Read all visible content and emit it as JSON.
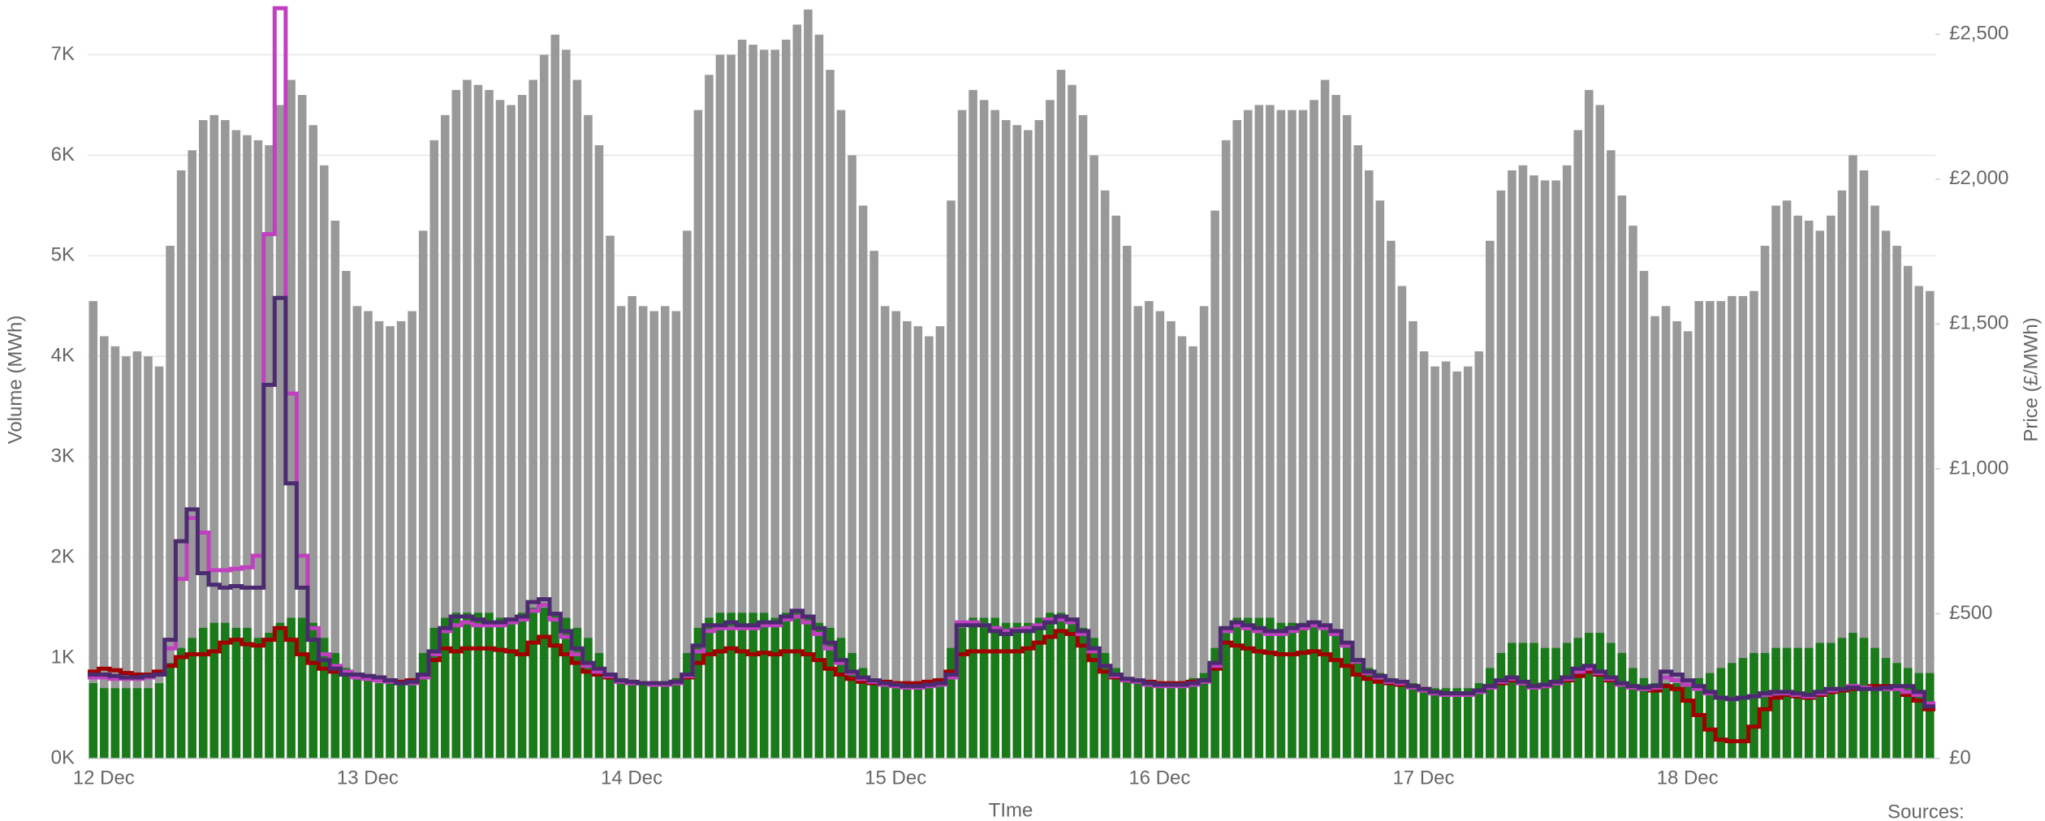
{
  "chart_data": {
    "type": "bar",
    "x_label": "TIme",
    "y_label": "Volume (MWh)",
    "y2_label": "Price (£/MWh)",
    "footer": "Sources:",
    "grid": true,
    "ylim": [
      0,
      7480
    ],
    "yticks": [
      {
        "value": 0,
        "label": "0K"
      },
      {
        "value": 1000,
        "label": "1K"
      },
      {
        "value": 2000,
        "label": "2K"
      },
      {
        "value": 3000,
        "label": "3K"
      },
      {
        "value": 4000,
        "label": "4K"
      },
      {
        "value": 5000,
        "label": "5K"
      },
      {
        "value": 6000,
        "label": "6K"
      },
      {
        "value": 7000,
        "label": "7K"
      }
    ],
    "y2lim": [
      0,
      2596
    ],
    "y2ticks": [
      {
        "value": 0,
        "label": "£0"
      },
      {
        "value": 500,
        "label": "£500"
      },
      {
        "value": 1000,
        "label": "£1,000"
      },
      {
        "value": 1500,
        "label": "£1,500"
      },
      {
        "value": 2000,
        "label": "£2,000"
      },
      {
        "value": 2500,
        "label": "£2,500"
      }
    ],
    "categories": [
      "12 Dec",
      null,
      null,
      null,
      null,
      null,
      null,
      null,
      null,
      null,
      null,
      null,
      null,
      null,
      null,
      null,
      null,
      null,
      null,
      null,
      null,
      null,
      null,
      null,
      "13 Dec",
      null,
      null,
      null,
      null,
      null,
      null,
      null,
      null,
      null,
      null,
      null,
      null,
      null,
      null,
      null,
      null,
      null,
      null,
      null,
      null,
      null,
      null,
      null,
      "14 Dec",
      null,
      null,
      null,
      null,
      null,
      null,
      null,
      null,
      null,
      null,
      null,
      null,
      null,
      null,
      null,
      null,
      null,
      null,
      null,
      null,
      null,
      null,
      null,
      "15 Dec",
      null,
      null,
      null,
      null,
      null,
      null,
      null,
      null,
      null,
      null,
      null,
      null,
      null,
      null,
      null,
      null,
      null,
      null,
      null,
      null,
      null,
      null,
      null,
      "16 Dec",
      null,
      null,
      null,
      null,
      null,
      null,
      null,
      null,
      null,
      null,
      null,
      null,
      null,
      null,
      null,
      null,
      null,
      null,
      null,
      null,
      null,
      null,
      null,
      "17 Dec",
      null,
      null,
      null,
      null,
      null,
      null,
      null,
      null,
      null,
      null,
      null,
      null,
      null,
      null,
      null,
      null,
      null,
      null,
      null,
      null,
      null,
      null,
      null,
      "18 Dec",
      null,
      null,
      null,
      null,
      null,
      null,
      null,
      null,
      null,
      null,
      null,
      null,
      null,
      null,
      null,
      null,
      null,
      null,
      null,
      null,
      null,
      null,
      null
    ],
    "series": [
      {
        "color": "#999999",
        "values": [
          4550,
          4200,
          4100,
          4000,
          4050,
          4000,
          3900,
          5100,
          5850,
          6050,
          6350,
          6400,
          6350,
          6250,
          6200,
          6150,
          6100,
          6500,
          6750,
          6600,
          6300,
          5900,
          5350,
          4850,
          4500,
          4450,
          4350,
          4300,
          4350,
          4450,
          5250,
          6150,
          6400,
          6650,
          6750,
          6700,
          6650,
          6550,
          6500,
          6600,
          6750,
          7000,
          7200,
          7050,
          6750,
          6400,
          6100,
          5200,
          4500,
          4600,
          4500,
          4450,
          4500,
          4450,
          5250,
          6450,
          6800,
          7000,
          7000,
          7150,
          7100,
          7050,
          7050,
          7150,
          7300,
          7450,
          7200,
          6850,
          6450,
          6000,
          5500,
          5050,
          4500,
          4450,
          4350,
          4300,
          4200,
          4300,
          5550,
          6450,
          6650,
          6550,
          6450,
          6350,
          6300,
          6250,
          6350,
          6550,
          6850,
          6700,
          6400,
          6000,
          5650,
          5400,
          5100,
          4500,
          4550,
          4450,
          4350,
          4200,
          4100,
          4500,
          5450,
          6150,
          6350,
          6450,
          6500,
          6500,
          6450,
          6450,
          6450,
          6550,
          6750,
          6600,
          6400,
          6100,
          5850,
          5550,
          5150,
          4700,
          4350,
          4050,
          3900,
          3950,
          3850,
          3900,
          4050,
          5150,
          5650,
          5850,
          5900,
          5800,
          5750,
          5750,
          5900,
          6250,
          6650,
          6500,
          6050,
          5600,
          5300,
          4850,
          4400,
          4500,
          4350,
          4250,
          4550,
          4550,
          4550,
          4600,
          4600,
          4650,
          5100,
          5500,
          5550,
          5400,
          5350,
          5250,
          5400,
          5650,
          6000,
          5850,
          5500,
          5250,
          5100,
          4900,
          4700,
          4650
        ]
      },
      {
        "color": "#1a7a1a",
        "values": [
          750,
          700,
          700,
          700,
          700,
          700,
          750,
          950,
          1100,
          1200,
          1300,
          1350,
          1350,
          1300,
          1300,
          1200,
          1250,
          1350,
          1400,
          1400,
          1350,
          1200,
          1050,
          900,
          850,
          800,
          750,
          750,
          750,
          800,
          1050,
          1300,
          1400,
          1450,
          1450,
          1450,
          1450,
          1400,
          1400,
          1450,
          1500,
          1500,
          1450,
          1400,
          1300,
          1200,
          1050,
          850,
          800,
          750,
          750,
          750,
          750,
          800,
          1050,
          1300,
          1400,
          1450,
          1450,
          1450,
          1450,
          1450,
          1400,
          1450,
          1450,
          1400,
          1350,
          1300,
          1200,
          1050,
          900,
          750,
          750,
          700,
          700,
          700,
          750,
          800,
          1100,
          1300,
          1400,
          1400,
          1400,
          1350,
          1350,
          1350,
          1400,
          1450,
          1450,
          1400,
          1300,
          1200,
          1050,
          900,
          800,
          750,
          750,
          750,
          750,
          750,
          800,
          850,
          1100,
          1300,
          1400,
          1400,
          1400,
          1400,
          1350,
          1350,
          1350,
          1350,
          1300,
          1250,
          1150,
          1000,
          900,
          850,
          800,
          750,
          750,
          700,
          700,
          700,
          700,
          700,
          750,
          900,
          1050,
          1150,
          1150,
          1150,
          1100,
          1100,
          1150,
          1200,
          1250,
          1250,
          1150,
          1050,
          900,
          800,
          750,
          750,
          750,
          750,
          800,
          850,
          900,
          950,
          1000,
          1050,
          1050,
          1100,
          1100,
          1100,
          1100,
          1150,
          1150,
          1200,
          1250,
          1200,
          1100,
          1000,
          950,
          900,
          850,
          850
        ]
      },
      {
        "type": "line",
        "axis": "y2",
        "step": true,
        "color": "#a00000",
        "values": [
          300,
          310,
          305,
          295,
          290,
          290,
          300,
          320,
          350,
          360,
          360,
          370,
          400,
          410,
          395,
          390,
          410,
          450,
          410,
          360,
          330,
          310,
          300,
          295,
          285,
          280,
          275,
          270,
          265,
          270,
          280,
          340,
          380,
          370,
          380,
          380,
          380,
          375,
          370,
          360,
          400,
          420,
          390,
          360,
          330,
          300,
          290,
          280,
          265,
          260,
          260,
          260,
          260,
          265,
          280,
          330,
          360,
          370,
          380,
          370,
          360,
          365,
          360,
          370,
          370,
          360,
          340,
          310,
          290,
          275,
          265,
          260,
          265,
          260,
          260,
          260,
          265,
          270,
          300,
          360,
          370,
          370,
          370,
          370,
          370,
          380,
          400,
          420,
          440,
          430,
          390,
          340,
          300,
          280,
          270,
          265,
          265,
          260,
          260,
          260,
          265,
          270,
          310,
          400,
          390,
          380,
          370,
          365,
          360,
          360,
          365,
          370,
          360,
          340,
          320,
          290,
          275,
          265,
          260,
          255,
          250,
          240,
          230,
          225,
          225,
          225,
          235,
          250,
          260,
          270,
          260,
          250,
          250,
          260,
          270,
          285,
          300,
          290,
          270,
          255,
          245,
          240,
          235,
          250,
          240,
          200,
          150,
          100,
          65,
          60,
          60,
          110,
          170,
          210,
          220,
          215,
          210,
          220,
          230,
          235,
          240,
          245,
          250,
          250,
          240,
          220,
          200,
          170
        ]
      },
      {
        "type": "line",
        "axis": "y2",
        "step": true,
        "color": "#c040c0",
        "values": [
          280,
          280,
          275,
          275,
          275,
          280,
          290,
          380,
          620,
          830,
          780,
          650,
          650,
          655,
          660,
          700,
          1810,
          2590,
          1260,
          700,
          450,
          360,
          320,
          300,
          280,
          275,
          270,
          265,
          260,
          260,
          280,
          360,
          440,
          460,
          470,
          460,
          460,
          460,
          470,
          480,
          510,
          530,
          480,
          420,
          360,
          320,
          300,
          285,
          265,
          260,
          260,
          255,
          255,
          260,
          285,
          370,
          440,
          450,
          450,
          450,
          450,
          460,
          460,
          480,
          490,
          470,
          430,
          380,
          330,
          295,
          275,
          265,
          255,
          250,
          245,
          245,
          250,
          255,
          280,
          470,
          470,
          460,
          450,
          440,
          445,
          450,
          460,
          480,
          480,
          470,
          430,
          370,
          320,
          285,
          270,
          265,
          255,
          250,
          250,
          250,
          255,
          265,
          320,
          440,
          460,
          450,
          440,
          430,
          430,
          440,
          450,
          460,
          450,
          430,
          390,
          335,
          295,
          280,
          265,
          260,
          245,
          235,
          225,
          220,
          220,
          220,
          230,
          245,
          265,
          275,
          260,
          245,
          250,
          260,
          275,
          300,
          310,
          295,
          275,
          255,
          245,
          240,
          245,
          280,
          270,
          255,
          240,
          225,
          210,
          205,
          210,
          215,
          220,
          225,
          225,
          220,
          215,
          225,
          235,
          240,
          250,
          245,
          240,
          240,
          240,
          230,
          220,
          190
        ]
      },
      {
        "type": "line",
        "axis": "y2",
        "step": true,
        "color": "#4b2a70",
        "values": [
          290,
          290,
          285,
          280,
          280,
          285,
          290,
          410,
          750,
          860,
          640,
          600,
          590,
          595,
          590,
          590,
          1290,
          1590,
          950,
          590,
          410,
          340,
          310,
          290,
          290,
          285,
          280,
          270,
          260,
          265,
          290,
          370,
          450,
          490,
          490,
          480,
          470,
          470,
          480,
          490,
          540,
          550,
          500,
          440,
          380,
          330,
          310,
          290,
          270,
          265,
          260,
          260,
          260,
          265,
          290,
          390,
          460,
          460,
          470,
          460,
          460,
          470,
          470,
          490,
          510,
          490,
          450,
          400,
          340,
          300,
          280,
          270,
          260,
          255,
          250,
          250,
          255,
          260,
          290,
          460,
          460,
          460,
          440,
          430,
          440,
          440,
          450,
          470,
          490,
          480,
          440,
          380,
          320,
          290,
          275,
          270,
          260,
          255,
          255,
          255,
          260,
          270,
          330,
          450,
          470,
          460,
          450,
          440,
          440,
          450,
          460,
          470,
          460,
          440,
          400,
          340,
          300,
          285,
          270,
          265,
          250,
          240,
          230,
          225,
          225,
          225,
          235,
          250,
          270,
          280,
          265,
          250,
          255,
          265,
          280,
          310,
          320,
          300,
          280,
          260,
          250,
          245,
          250,
          300,
          290,
          270,
          250,
          230,
          210,
          205,
          210,
          215,
          225,
          230,
          230,
          225,
          220,
          230,
          240,
          240,
          245,
          240,
          240,
          245,
          250,
          250,
          230,
          180
        ]
      }
    ]
  }
}
